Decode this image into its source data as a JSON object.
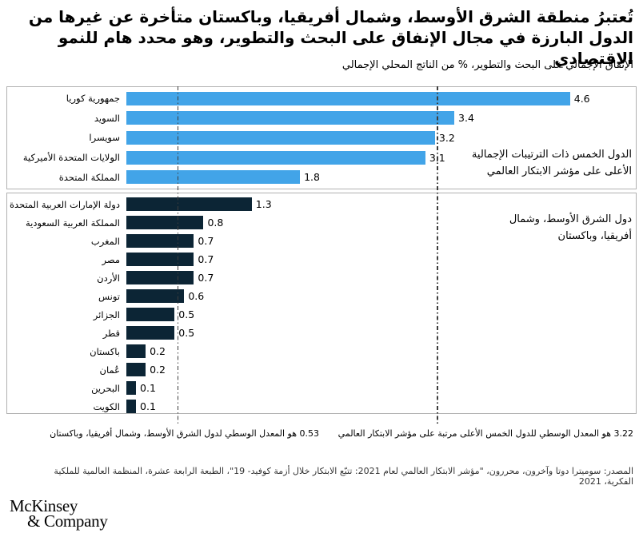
{
  "page": {
    "title": "تُعتبرُ منطقة الشرق الأوسط، وشمال أفريقيا، وباكستان متأخرة عن غيرها من الدول البارزة في مجال الإنفاق على البحث والتطوير، وهو محدد هام للنمو الاقتصادي",
    "subtitle": "الإنفاق الإجمالي على البحث والتطوير، % من الناتج المحلي الإجمالي",
    "source": "المصدر: سوميترا دوتا وآخرون، محررون، \"مؤشر الابتكار العالمي لعام 2021: تتبّع الابتكار خلال أزمة كوفيد- 19\"، الطبعة الرابعة عشرة، المنظمة العالمية للملكية الفكرية، 2021",
    "logo_line1": "McKinsey",
    "logo_line2": "& Company"
  },
  "colors": {
    "top_group_bar": "#42a4e8",
    "mena_group_bar": "#0c2535",
    "reference_line": "#3d3d3d",
    "panel_border": "#b1b1b1"
  },
  "chart_data": {
    "type": "bar",
    "orientation": "horizontal",
    "title": "تُعتبرُ منطقة الشرق الأوسط، وشمال أفريقيا، وباكستان متأخرة عن غيرها من الدول البارزة في مجال الإنفاق على البحث والتطوير، وهو محدد هام للنمو الاقتصادي",
    "subtitle": "الإنفاق الإجمالي على البحث والتطوير، % من الناتج المحلي الإجمالي",
    "xlim": [
      0,
      5.2
    ],
    "grid": false,
    "value_labels": "end-of-bar",
    "groups": [
      {
        "label": "الدول الخمس ذات الترتيبات الإجمالية الأعلى على مؤشر الابتكار العالمي",
        "bars": [
          {
            "name": "جمهورية كوريا",
            "value": 4.6
          },
          {
            "name": "السويد",
            "value": 3.4
          },
          {
            "name": "سويسرا",
            "value": 3.2
          },
          {
            "name": "الولايات المتحدة الأميركية",
            "value": 3.1
          },
          {
            "name": "المملكة المتحدة",
            "value": 1.8
          }
        ]
      },
      {
        "label": "دول الشرق الأوسط، وشمال أفريقيا، وباكستان",
        "bars": [
          {
            "name": "دولة الإمارات العربية المتحدة",
            "value": 1.3
          },
          {
            "name": "المملكة العربية السعودية",
            "value": 0.8
          },
          {
            "name": "المغرب",
            "value": 0.7
          },
          {
            "name": "مصر",
            "value": 0.7
          },
          {
            "name": "الأردن",
            "value": 0.7
          },
          {
            "name": "تونس",
            "value": 0.6
          },
          {
            "name": "الجزائر",
            "value": 0.5
          },
          {
            "name": "قطر",
            "value": 0.5
          },
          {
            "name": "باكستان",
            "value": 0.2
          },
          {
            "name": "عُمان",
            "value": 0.2
          },
          {
            "name": "البحرين",
            "value": 0.1
          },
          {
            "name": "الكويت",
            "value": 0.1
          }
        ]
      }
    ],
    "reference_lines": [
      {
        "value": 3.22,
        "label": "3.22 هو المعدل الوسطي للدول الخمس الأعلى مرتبة على مؤشر الابتكار العالمي"
      },
      {
        "value": 0.53,
        "label": "0.53 هو المعدل الوسطي لدول الشرق الأوسط، وشمال أفريقيا، وباكستان"
      }
    ]
  }
}
